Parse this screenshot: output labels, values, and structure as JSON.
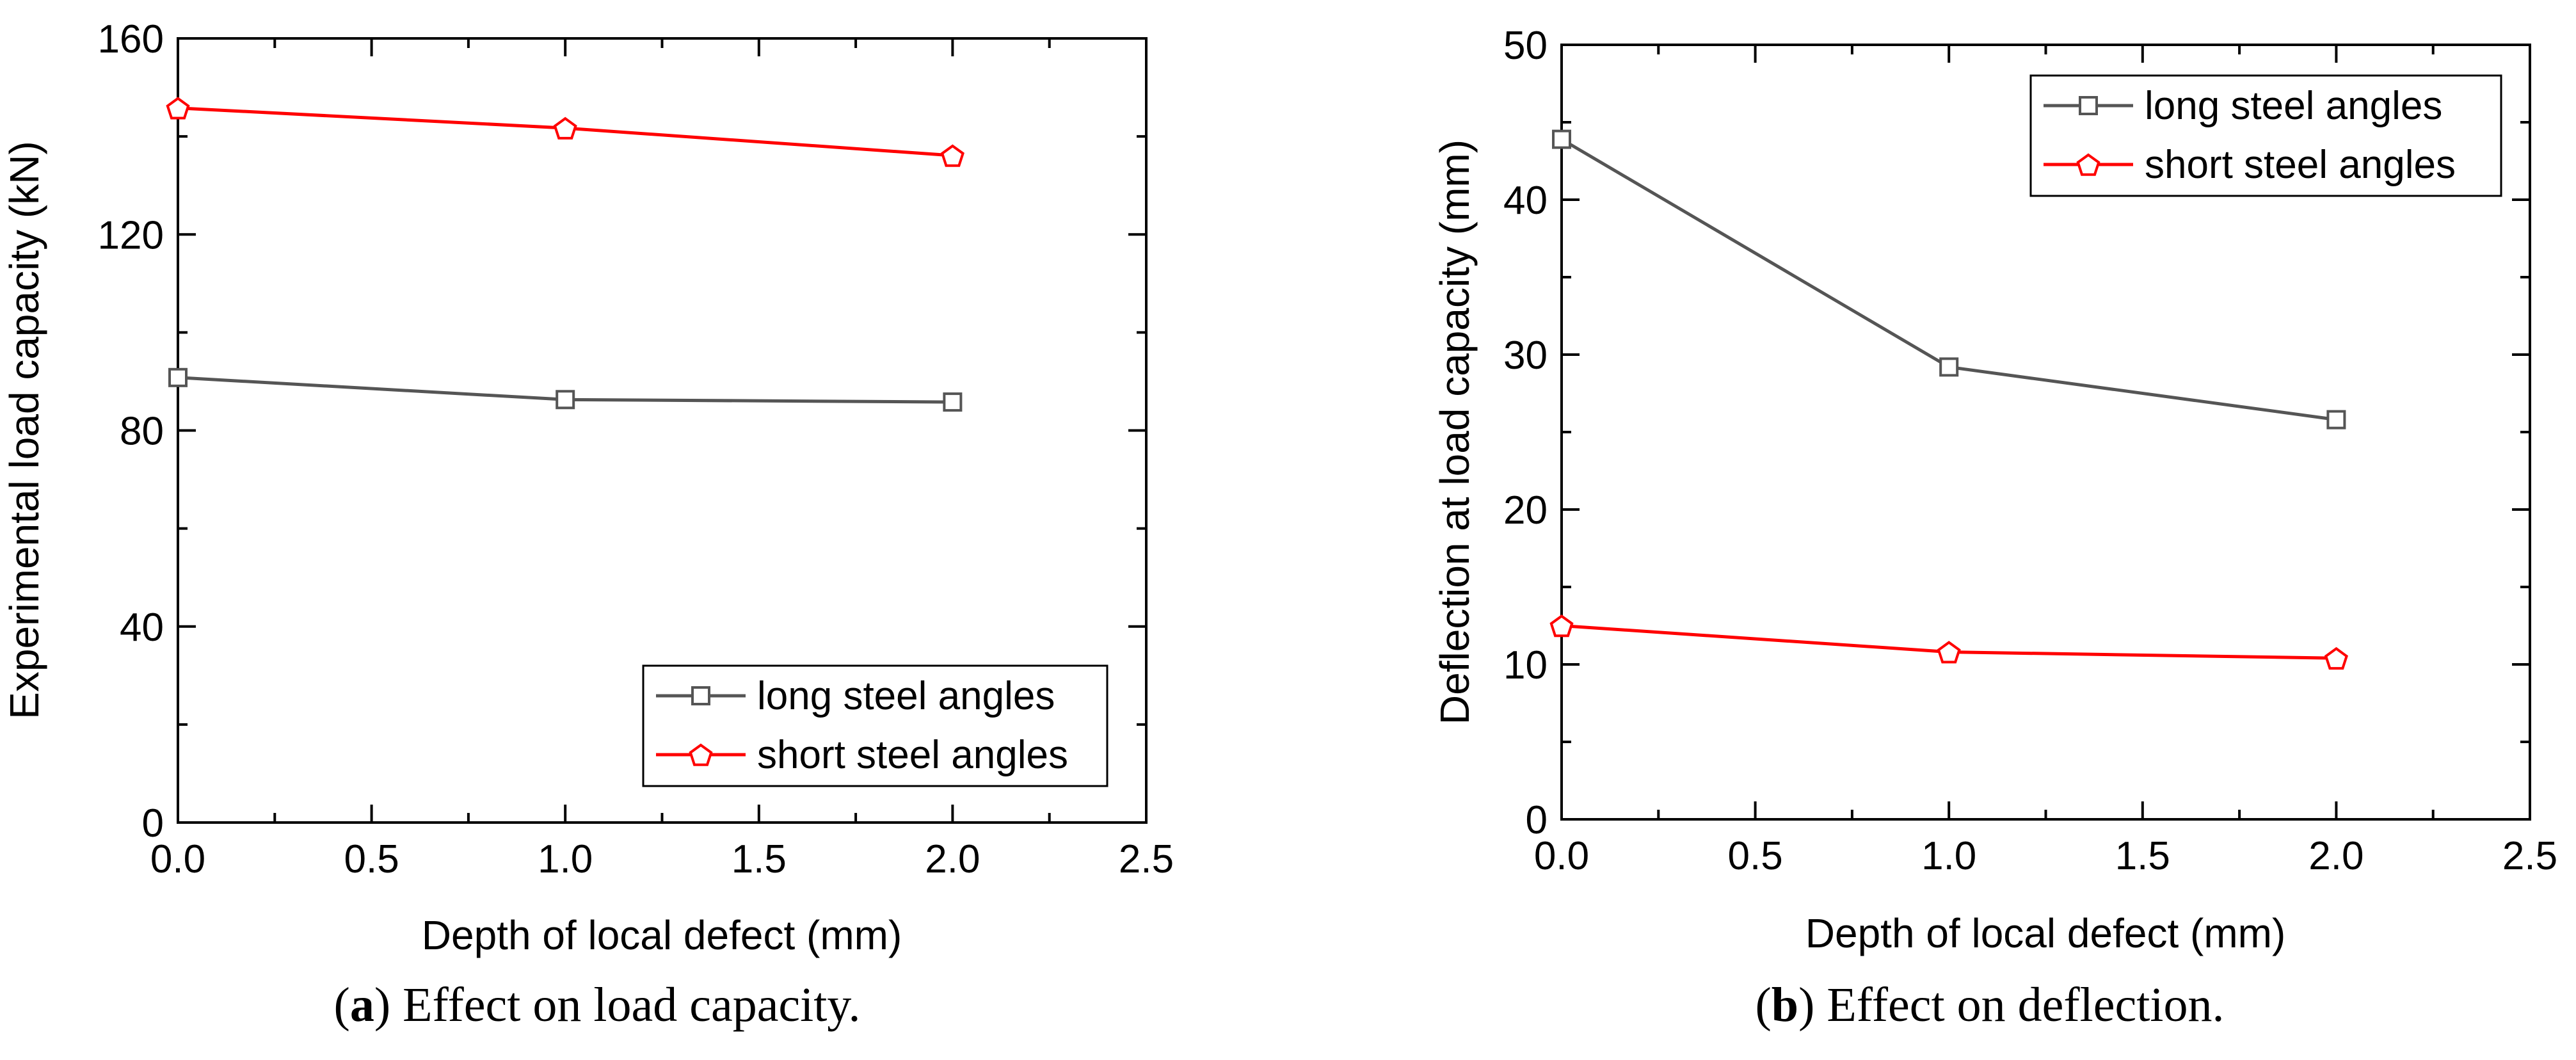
{
  "chart_data": [
    {
      "type": "line",
      "title": "",
      "caption_letter": "a",
      "caption_text": "Effect on load capacity.",
      "xlabel": "Depth of local defect (mm)",
      "ylabel": "Experimental load capacity (kN)",
      "xlim": [
        0,
        2.5
      ],
      "ylim": [
        0,
        160
      ],
      "x_ticks": [
        "0.0",
        "0.5",
        "1.0",
        "1.5",
        "2.0",
        "2.5"
      ],
      "y_ticks": [
        "0",
        "40",
        "80",
        "120",
        "160"
      ],
      "legend_position": "lower-right",
      "grid": false,
      "series": [
        {
          "name": "long steel angles",
          "color": "#555555",
          "marker": "square",
          "x": [
            0.0,
            1.0,
            2.0
          ],
          "values": [
            90.8,
            86.3,
            85.8
          ]
        },
        {
          "name": "short steel angles",
          "color": "#ff0000",
          "marker": "pentagon",
          "x": [
            0.0,
            1.0,
            2.0
          ],
          "values": [
            145.8,
            141.7,
            136.1
          ]
        }
      ]
    },
    {
      "type": "line",
      "title": "",
      "caption_letter": "b",
      "caption_text": "Effect on deflection.",
      "xlabel": "Depth of local defect (mm)",
      "ylabel": "Deflection at load capacity (mm)",
      "xlim": [
        0,
        2.5
      ],
      "ylim": [
        0,
        50
      ],
      "x_ticks": [
        "0.0",
        "0.5",
        "1.0",
        "1.5",
        "2.0",
        "2.5"
      ],
      "y_ticks": [
        "0",
        "10",
        "20",
        "30",
        "40",
        "50"
      ],
      "legend_position": "upper-right",
      "grid": false,
      "series": [
        {
          "name": "long steel angles",
          "color": "#555555",
          "marker": "square",
          "x": [
            0.0,
            1.0,
            2.0
          ],
          "values": [
            43.9,
            29.2,
            25.8
          ]
        },
        {
          "name": "short steel angles",
          "color": "#ff0000",
          "marker": "pentagon",
          "x": [
            0.0,
            1.0,
            2.0
          ],
          "values": [
            12.5,
            10.8,
            10.4
          ]
        }
      ]
    }
  ]
}
